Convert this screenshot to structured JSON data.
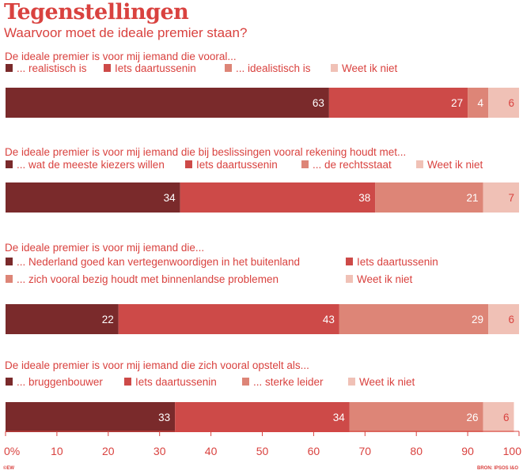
{
  "title": "Tegenstellingen",
  "subtitle": "Waarvoor moet de ideale premier staan?",
  "credit": "©EW",
  "source": "BRON: IPSOS I&O",
  "colors": [
    "#7a2a2b",
    "#cd4a48",
    "#dd8577",
    "#f0c1b6"
  ],
  "chart_data": [
    {
      "type": "bar",
      "orientation": "horizontal-stacked",
      "question": "De ideale premier is voor mij iemand die vooral...",
      "series": [
        {
          "name": "... realistisch is",
          "values": [
            63
          ]
        },
        {
          "name": "Iets daartussenin",
          "values": [
            27
          ]
        },
        {
          "name": "... idealistisch is",
          "values": [
            4
          ]
        },
        {
          "name": "Weet ik niet",
          "values": [
            6
          ]
        }
      ],
      "xlim": [
        0,
        100
      ]
    },
    {
      "type": "bar",
      "orientation": "horizontal-stacked",
      "question": "De ideale premier is voor mij iemand die bij beslissingen vooral rekening houdt met...",
      "series": [
        {
          "name": "... wat de meeste kiezers willen",
          "values": [
            34
          ]
        },
        {
          "name": "Iets daartussenin",
          "values": [
            38
          ]
        },
        {
          "name": "... de rechtsstaat",
          "values": [
            21
          ]
        },
        {
          "name": "Weet ik niet",
          "values": [
            7
          ]
        }
      ],
      "xlim": [
        0,
        100
      ]
    },
    {
      "type": "bar",
      "orientation": "horizontal-stacked",
      "question": "De ideale premier is voor mij iemand die...",
      "series": [
        {
          "name": "... Nederland goed kan vertegenwoordigen in het buitenland",
          "values": [
            22
          ]
        },
        {
          "name": "Iets daartussenin",
          "values": [
            43
          ]
        },
        {
          "name": "... zich vooral bezig houdt met binnenlandse problemen",
          "values": [
            29
          ]
        },
        {
          "name": "Weet ik niet",
          "values": [
            6
          ]
        }
      ],
      "xlim": [
        0,
        100
      ]
    },
    {
      "type": "bar",
      "orientation": "horizontal-stacked",
      "question": "De ideale premier is voor mij iemand die zich vooral opstelt als...",
      "series": [
        {
          "name": "... bruggenbouwer",
          "values": [
            33
          ]
        },
        {
          "name": "Iets daartussenin",
          "values": [
            34
          ]
        },
        {
          "name": "... sterke leider",
          "values": [
            26
          ]
        },
        {
          "name": "Weet ik niet",
          "values": [
            6
          ]
        }
      ],
      "xlim": [
        0,
        100
      ]
    }
  ],
  "axis": {
    "ticks": [
      0,
      10,
      20,
      30,
      40,
      50,
      60,
      70,
      80,
      90,
      100
    ],
    "tick_labels": [
      "0%",
      "10",
      "20",
      "30",
      "40",
      "50",
      "60",
      "70",
      "80",
      "90",
      "100"
    ]
  }
}
